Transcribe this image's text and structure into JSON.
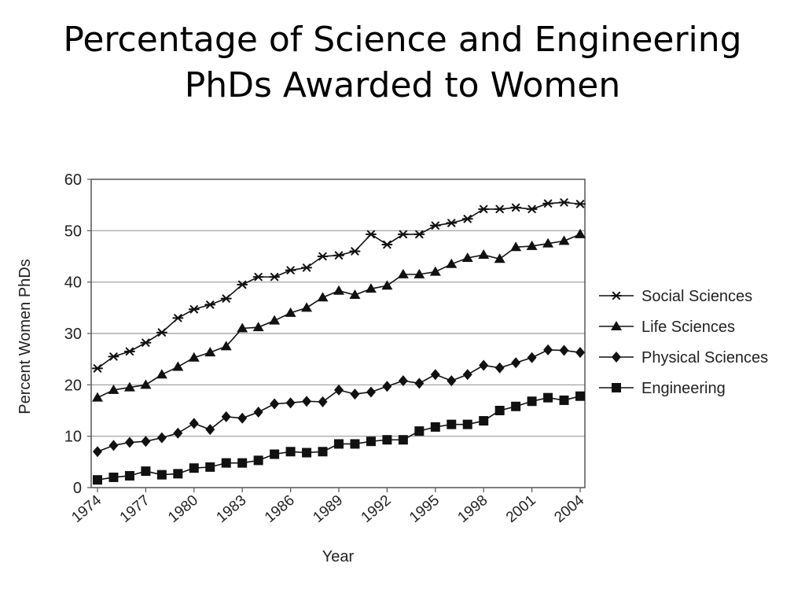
{
  "slide": {
    "title_line1": "Percentage of Science and Engineering",
    "title_line2": "PhDs Awarded to Women"
  },
  "chart_data": {
    "type": "line",
    "xlabel": "Year",
    "ylabel": "Percent Women PhDs",
    "xlim": [
      1974,
      2004
    ],
    "ylim": [
      0,
      60
    ],
    "yticks": [
      0,
      10,
      20,
      30,
      40,
      50,
      60
    ],
    "xticks": [
      "1974",
      "1977",
      "1980",
      "1983",
      "1986",
      "1989",
      "1992",
      "1995",
      "1998",
      "2001",
      "2004"
    ],
    "grid": "horizontal",
    "legend_position": "right",
    "x": [
      1974,
      1975,
      1976,
      1977,
      1978,
      1979,
      1980,
      1981,
      1982,
      1983,
      1984,
      1985,
      1986,
      1987,
      1988,
      1989,
      1990,
      1991,
      1992,
      1993,
      1994,
      1995,
      1996,
      1997,
      1998,
      1999,
      2000,
      2001,
      2002,
      2003,
      2004
    ],
    "series": [
      {
        "name": "Social Sciences",
        "marker": "asterisk",
        "values": [
          23.2,
          25.5,
          26.5,
          28.2,
          30.2,
          33.0,
          34.7,
          35.6,
          36.8,
          39.5,
          41.0,
          41.0,
          42.3,
          42.8,
          45.0,
          45.2,
          46.0,
          49.3,
          47.3,
          49.3,
          49.3,
          51.0,
          51.5,
          52.3,
          54.2,
          54.2,
          54.5,
          54.2,
          55.3,
          55.5,
          55.2
        ]
      },
      {
        "name": "Life Sciences",
        "marker": "triangle",
        "values": [
          17.5,
          19.0,
          19.5,
          20.0,
          22.0,
          23.5,
          25.3,
          26.3,
          27.5,
          31.0,
          31.2,
          32.5,
          34.0,
          35.0,
          37.0,
          38.3,
          37.5,
          38.7,
          39.3,
          41.5,
          41.5,
          42.0,
          43.5,
          44.7,
          45.3,
          44.5,
          46.8,
          47.0,
          47.5,
          48.0,
          49.3
        ]
      },
      {
        "name": "Physical Sciences",
        "marker": "diamond",
        "values": [
          7.0,
          8.2,
          8.8,
          9.0,
          9.7,
          10.6,
          12.5,
          11.3,
          13.8,
          13.5,
          14.7,
          16.3,
          16.5,
          16.8,
          16.7,
          19.0,
          18.2,
          18.6,
          19.7,
          20.8,
          20.3,
          22.0,
          20.8,
          22.0,
          23.8,
          23.3,
          24.3,
          25.3,
          26.8,
          26.7,
          26.3
        ]
      },
      {
        "name": "Engineering",
        "marker": "square",
        "values": [
          1.5,
          2.0,
          2.3,
          3.2,
          2.5,
          2.7,
          3.8,
          4.0,
          4.8,
          4.8,
          5.3,
          6.5,
          7.0,
          6.8,
          7.0,
          8.5,
          8.5,
          9.0,
          9.3,
          9.3,
          11.0,
          11.8,
          12.3,
          12.3,
          13.0,
          15.0,
          15.8,
          16.8,
          17.5,
          17.0,
          17.8
        ]
      }
    ]
  }
}
